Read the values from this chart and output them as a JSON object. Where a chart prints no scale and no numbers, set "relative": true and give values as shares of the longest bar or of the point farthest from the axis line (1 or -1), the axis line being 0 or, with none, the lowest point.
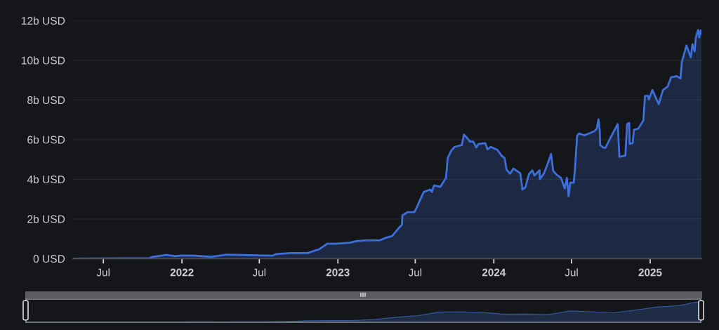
{
  "chart_data": [
    {
      "type": "area",
      "x": [
        "2021-04-21",
        "2021-10-17",
        "2021-10-24",
        "2021-11-26",
        "2021-12-17",
        "2021-12-29",
        "2022-01-31",
        "2022-03-09",
        "2022-04-16",
        "2022-06-06",
        "2022-08-01",
        "2022-08-10",
        "2022-09-13",
        "2022-10-22",
        "2022-11-18",
        "2022-12-07",
        "2022-12-27",
        "2023-01-29",
        "2023-02-14",
        "2023-03-08",
        "2023-04-10",
        "2023-04-21",
        "2023-05-08",
        "2023-05-23",
        "2023-05-31",
        "2023-06-01",
        "2023-06-13",
        "2023-06-29",
        "2023-07-04",
        "2023-07-11",
        "2023-07-21",
        "2023-08-05",
        "2023-08-09",
        "2023-08-14",
        "2023-08-29",
        "2023-09-11",
        "2023-09-15",
        "2023-09-23",
        "2023-10-01",
        "2023-10-18",
        "2023-10-23",
        "2023-10-31",
        "2023-11-06",
        "2023-11-14",
        "2023-11-21",
        "2023-11-26",
        "2023-12-12",
        "2023-12-17",
        "2023-12-25",
        "2024-01-09",
        "2024-01-19",
        "2024-01-26",
        "2024-01-31",
        "2024-02-08",
        "2024-02-16",
        "2024-02-28",
        "2024-03-03",
        "2024-03-08",
        "2024-03-15",
        "2024-03-23",
        "2024-03-31",
        "2024-04-05",
        "2024-04-17",
        "2024-04-18",
        "2024-04-27",
        "2024-05-06",
        "2024-05-14",
        "2024-05-19",
        "2024-05-26",
        "2024-06-06",
        "2024-06-15",
        "2024-06-20",
        "2024-06-24",
        "2024-06-28",
        "2024-07-06",
        "2024-07-09",
        "2024-07-14",
        "2024-07-19",
        "2024-07-26",
        "2024-07-31",
        "2024-08-11",
        "2024-08-24",
        "2024-08-29",
        "2024-09-02",
        "2024-09-05",
        "2024-09-06",
        "2024-09-13",
        "2024-09-18",
        "2024-10-04",
        "2024-10-17",
        "2024-10-21",
        "2024-11-04",
        "2024-11-08",
        "2024-11-13",
        "2024-11-14",
        "2024-11-21",
        "2024-11-24",
        "2024-12-04",
        "2024-12-16",
        "2024-12-20",
        "2024-12-27",
        "2024-12-29",
        "2025-01-06",
        "2025-01-21",
        "2025-01-31",
        "2025-02-11",
        "2025-02-19",
        "2025-03-04",
        "2025-03-13",
        "2025-03-16",
        "2025-03-27",
        "2025-04-06",
        "2025-04-10",
        "2025-04-15",
        "2025-04-18",
        "2025-04-23",
        "2025-04-26",
        "2025-04-29",
        "2025-05-01"
      ],
      "series": [
        {
          "color": "#3d6fdc",
          "values": [
            0,
            0.02,
            0.09,
            0.18,
            0.12,
            0.16,
            0.15,
            0.09,
            0.2,
            0.17,
            0.15,
            0.23,
            0.28,
            0.28,
            0.47,
            0.75,
            0.75,
            0.8,
            0.88,
            0.92,
            0.93,
            1.03,
            1.14,
            1.53,
            1.71,
            2.18,
            2.34,
            2.34,
            2.55,
            2.89,
            3.36,
            3.48,
            3.36,
            3.69,
            3.62,
            4.07,
            5.07,
            5.43,
            5.63,
            5.72,
            6.25,
            6.07,
            5.9,
            5.9,
            5.6,
            5.78,
            5.82,
            5.51,
            5.63,
            5.49,
            5.19,
            5.07,
            4.48,
            4.28,
            4.54,
            4.36,
            4.3,
            3.48,
            3.6,
            4.25,
            4.45,
            4.19,
            4.45,
            4.01,
            4.28,
            4.78,
            5.27,
            4.42,
            4.25,
            4.07,
            3.54,
            4.07,
            3.15,
            3.83,
            3.83,
            4.54,
            6.19,
            6.31,
            6.25,
            6.22,
            6.31,
            6.43,
            6.55,
            7.02,
            6.43,
            5.72,
            5.6,
            5.58,
            6.25,
            6.78,
            5.13,
            5.19,
            6.78,
            6.84,
            5.78,
            5.83,
            6.49,
            6.55,
            6.96,
            8.2,
            8.2,
            8.02,
            8.5,
            7.79,
            8.5,
            8.67,
            9.14,
            9.2,
            9.08,
            9.91,
            10.74,
            10.15,
            10.8,
            10.44,
            11.15,
            11.53,
            11.15,
            11.5,
            11.33
          ]
        }
      ],
      "xlim": [
        "2021-04-21",
        "2025-05-01"
      ],
      "xticks": [
        {
          "value": "2021-07-01",
          "label": "Jul"
        },
        {
          "value": "2022-01-01",
          "label": "2022"
        },
        {
          "value": "2022-07-01",
          "label": "Jul"
        },
        {
          "value": "2023-01-01",
          "label": "2023"
        },
        {
          "value": "2023-07-01",
          "label": "Jul"
        },
        {
          "value": "2024-01-01",
          "label": "2024"
        },
        {
          "value": "2024-07-01",
          "label": "Jul"
        },
        {
          "value": "2025-01-01",
          "label": "2025"
        }
      ],
      "ylim": [
        0,
        12
      ],
      "yticks": [
        {
          "value": 0,
          "label": "0 USD"
        },
        {
          "value": 2,
          "label": "2b USD"
        },
        {
          "value": 4,
          "label": "4b USD"
        },
        {
          "value": 6,
          "label": "6b USD"
        },
        {
          "value": 8,
          "label": "8b USD"
        },
        {
          "value": 10,
          "label": "10b USD"
        },
        {
          "value": 12,
          "label": "12b USD"
        }
      ],
      "grid": "y"
    },
    {
      "type": "area",
      "relative": true,
      "categories": [
        null,
        null,
        null,
        null,
        null,
        null,
        null,
        null,
        null,
        null,
        null,
        null,
        null,
        null,
        null,
        null,
        null,
        null,
        null,
        null,
        null,
        null,
        null,
        null,
        null,
        null,
        null,
        null,
        null,
        null,
        null,
        null
      ],
      "series": [
        {
          "color": "#34569a",
          "values": [
            0,
            0,
            0,
            0,
            0.01,
            0.01,
            0.01,
            0.01,
            0.02,
            0.01,
            0.02,
            0.02,
            0.04,
            0.07,
            0.08,
            0.08,
            0.13,
            0.24,
            0.31,
            0.49,
            0.5,
            0.46,
            0.38,
            0.39,
            0.36,
            0.54,
            0.5,
            0.45,
            0.58,
            0.72,
            0.79,
            1
          ]
        }
      ]
    }
  ]
}
